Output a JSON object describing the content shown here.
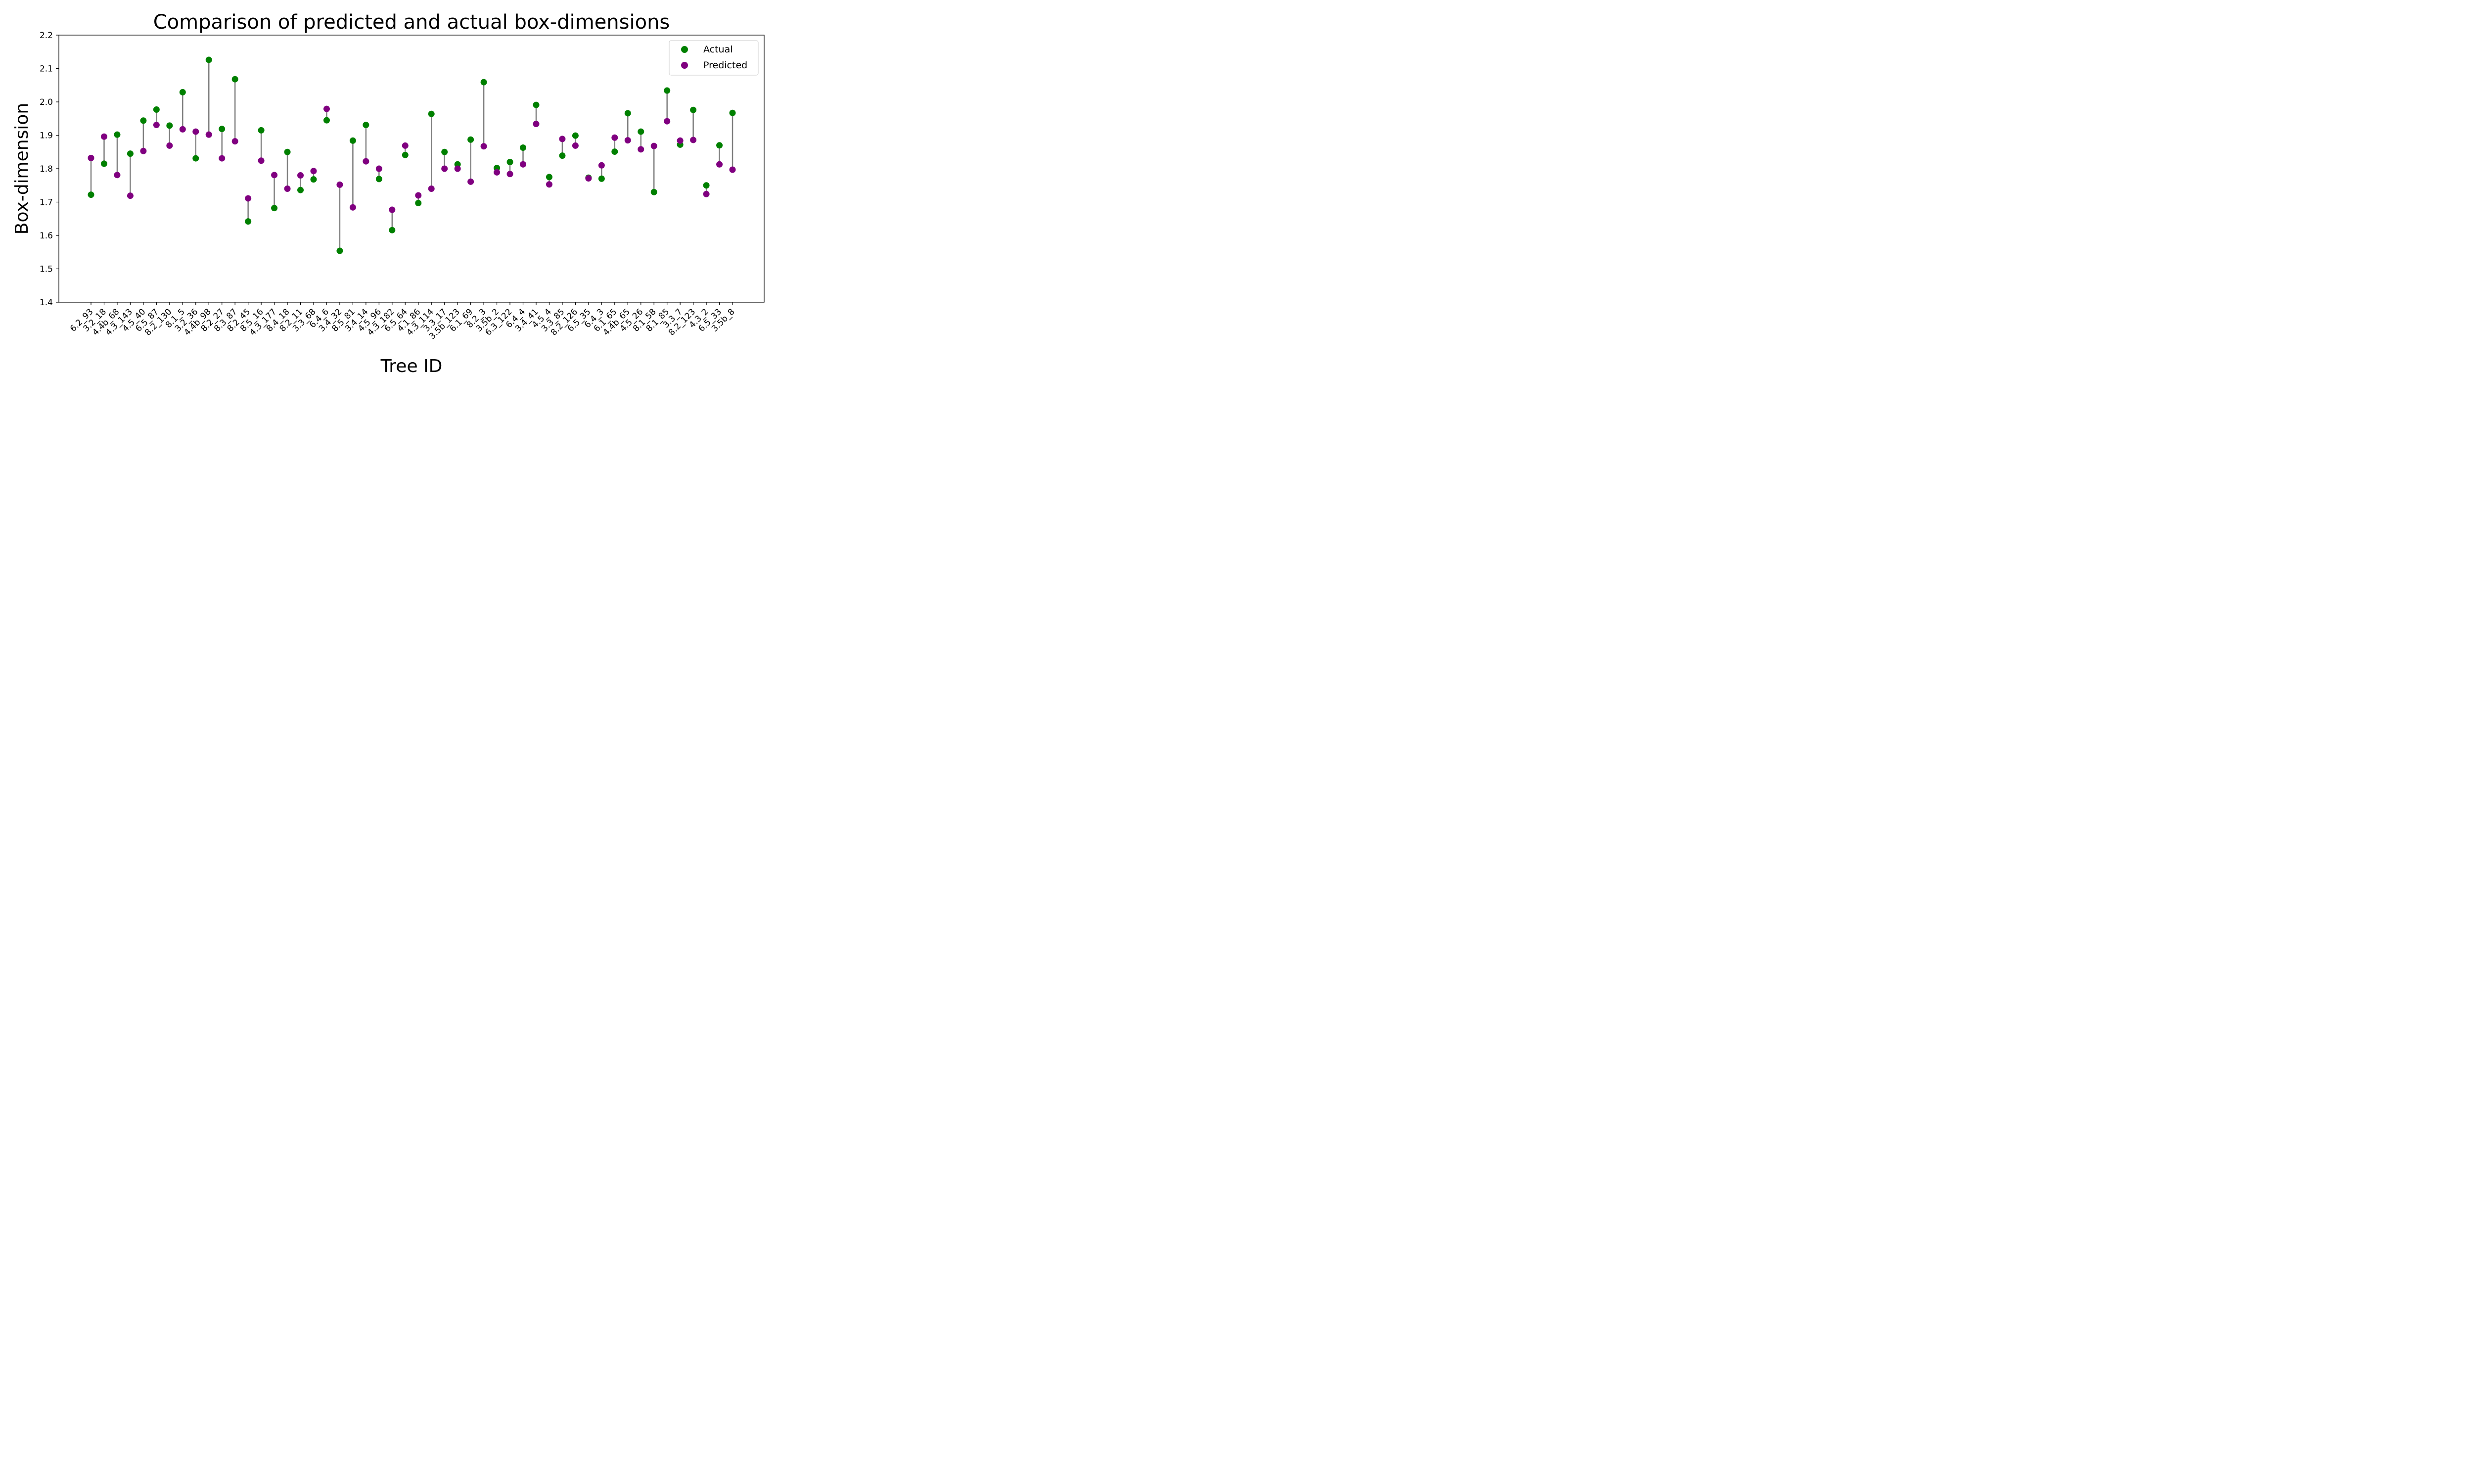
{
  "chart_data": {
    "type": "scatter",
    "title": "Comparison of predicted and actual box-dimensions",
    "xlabel": "Tree ID",
    "ylabel": "Box-dimension",
    "ylim": [
      1.4,
      2.2
    ],
    "yticks": [
      "1.4",
      "1.5",
      "1.6",
      "1.7",
      "1.8",
      "1.9",
      "2.0",
      "2.1",
      "2.2"
    ],
    "grid": false,
    "legend_position": "top-right",
    "connector_color": "#808080",
    "categories": [
      "6.2_93",
      "3.2_18",
      "4.4b_68",
      "4.3_143",
      "4.5_40",
      "6.5_87",
      "8.2_130",
      "8.1_5",
      "3.2_36",
      "4.4b_98",
      "8.2_27",
      "8.3_87",
      "8.2_45",
      "8.5_16",
      "4.3_177",
      "8.4_18",
      "8.2_11",
      "3.3_68",
      "6.4_6",
      "3.4_32",
      "8.5_81",
      "3.4_14",
      "4.5_96",
      "4.3_182",
      "6.5_64",
      "4.1_86",
      "4.3_114",
      "3.3_17",
      "3.5b_123",
      "6.1_69",
      "8.2_3",
      "3.5b_2",
      "6.3_122",
      "6.4_4",
      "3.4_41",
      "4.5_4",
      "3.3_85",
      "8.2_126",
      "6.5_35",
      "6.4_3",
      "6.1_65",
      "4.4b_65",
      "4.5_26",
      "8.1_58",
      "8.1_85",
      "3.3_7",
      "8.2_123",
      "4.3_2",
      "6.5_33",
      "3.5b_8"
    ],
    "series": [
      {
        "name": "Actual",
        "color": "#008000",
        "values": [
          1.722,
          1.815,
          1.902,
          1.845,
          1.944,
          1.977,
          1.929,
          2.029,
          1.831,
          2.126,
          1.919,
          2.068,
          1.642,
          1.915,
          1.682,
          1.85,
          1.736,
          1.768,
          1.945,
          1.554,
          1.884,
          1.931,
          1.769,
          1.616,
          1.841,
          1.697,
          1.964,
          1.85,
          1.813,
          1.887,
          2.059,
          1.802,
          1.82,
          1.863,
          1.991,
          1.775,
          1.839,
          1.899,
          1.773,
          1.77,
          1.851,
          1.966,
          1.911,
          1.73,
          2.034,
          1.872,
          1.976,
          1.75,
          1.87,
          1.967
        ]
      },
      {
        "name": "Predicted",
        "color": "#800080",
        "values": [
          1.832,
          1.896,
          1.781,
          1.719,
          1.853,
          1.931,
          1.869,
          1.918,
          1.911,
          1.902,
          1.831,
          1.882,
          1.711,
          1.824,
          1.781,
          1.74,
          1.78,
          1.793,
          1.979,
          1.752,
          1.684,
          1.822,
          1.8,
          1.677,
          1.869,
          1.72,
          1.74,
          1.8,
          1.8,
          1.761,
          1.867,
          1.789,
          1.784,
          1.813,
          1.934,
          1.753,
          1.889,
          1.869,
          1.771,
          1.81,
          1.893,
          1.885,
          1.858,
          1.868,
          1.942,
          1.884,
          1.886,
          1.724,
          1.813,
          1.797
        ]
      }
    ]
  }
}
